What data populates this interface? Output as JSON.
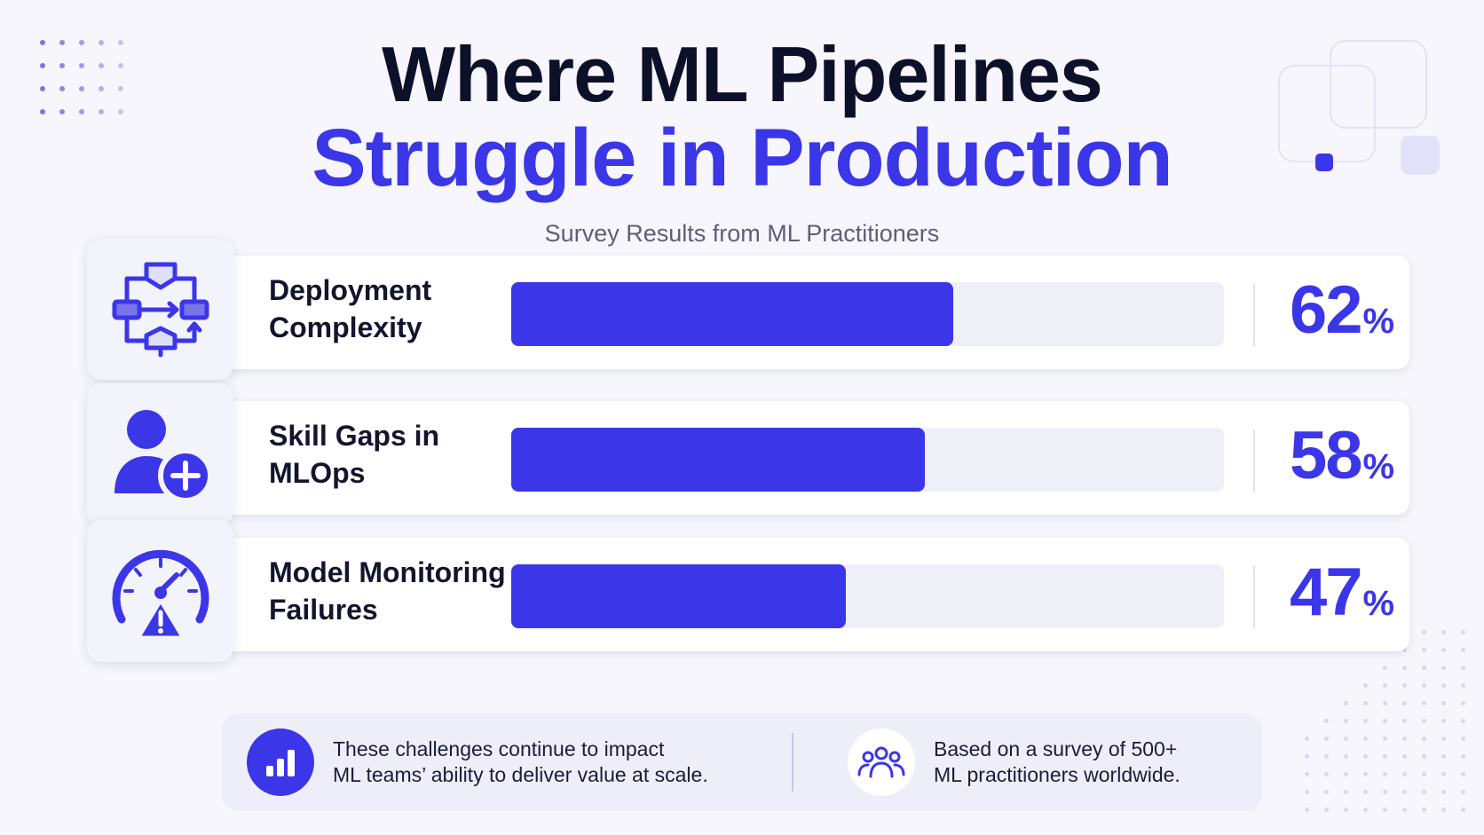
{
  "header": {
    "title_line1": "Where ML Pipelines",
    "title_line2": "Struggle in Production",
    "subtitle": "Survey Results from ML Practitioners"
  },
  "colors": {
    "accent": "#3b36e8",
    "title_dark": "#0d1029",
    "track": "#efeff8",
    "background": "#f6f6fc"
  },
  "chart_data": {
    "type": "bar",
    "orientation": "horizontal",
    "title": "Where ML Pipelines Struggle in Production",
    "subtitle": "Survey Results from ML Practitioners",
    "xlabel": "",
    "ylabel": "",
    "xlim": [
      0,
      100
    ],
    "unit": "%",
    "grid": false,
    "categories": [
      "Deployment Complexity",
      "Skill Gaps in MLOps",
      "Model Monitoring Failures"
    ],
    "values": [
      62,
      58,
      47
    ],
    "bars": [
      {
        "label_line1": "Deployment",
        "label_line2": "Complexity",
        "value": 62,
        "value_text": "62",
        "icon": "workflow-icon"
      },
      {
        "label_line1": "Skill Gaps in",
        "label_line2": "MLOps",
        "value": 58,
        "value_text": "58",
        "icon": "user-add-icon"
      },
      {
        "label_line1": "Model Monitoring",
        "label_line2": "Failures",
        "value": 47,
        "value_text": "47",
        "icon": "gauge-warning-icon"
      }
    ],
    "percent_sign": "%"
  },
  "footer": {
    "note1_line1": "These challenges continue to impact",
    "note1_line2": "ML teams’ ability to deliver value at scale.",
    "note1_icon": "bar-chart-icon",
    "note2_line1": "Based on a survey of 500+",
    "note2_line2": "ML practitioners worldwide.",
    "note2_icon": "people-group-icon"
  }
}
